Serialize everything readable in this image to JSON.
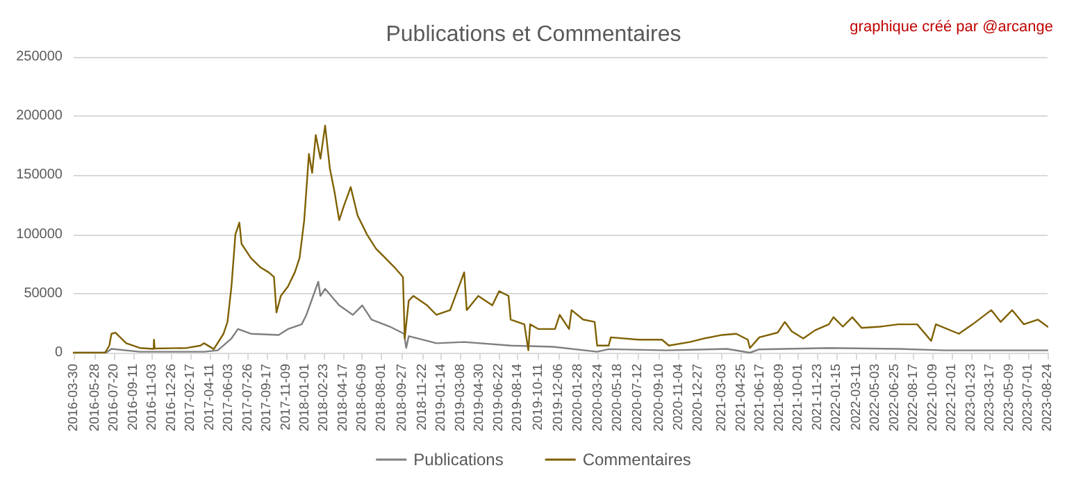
{
  "chart_data": {
    "type": "line",
    "title": "Publications et Commentaires",
    "annotations": [
      "graphique créé par @arcange"
    ],
    "xlim": [
      "2016-03-30",
      "2023-08-24"
    ],
    "xticks": [
      "2016-03-30",
      "2016-05-28",
      "2016-07-20",
      "2016-09-11",
      "2016-11-03",
      "2016-12-26",
      "2017-02-17",
      "2017-04-11",
      "2017-06-03",
      "2017-07-26",
      "2017-09-17",
      "2017-11-09",
      "2018-01-01",
      "2018-02-23",
      "2018-04-17",
      "2018-06-09",
      "2018-08-01",
      "2018-09-27",
      "2018-11-22",
      "2019-01-14",
      "2019-03-08",
      "2019-04-30",
      "2019-06-22",
      "2019-08-14",
      "2019-10-11",
      "2019-12-06",
      "2020-01-28",
      "2020-03-24",
      "2020-05-18",
      "2020-07-12",
      "2020-09-10",
      "2020-11-04",
      "2020-12-27",
      "2021-03-03",
      "2021-04-25",
      "2021-06-17",
      "2021-08-09",
      "2021-10-01",
      "2021-11-23",
      "2022-01-15",
      "2022-03-11",
      "2022-05-03",
      "2022-06-25",
      "2022-08-17",
      "2022-10-09",
      "2022-12-01",
      "2023-01-23",
      "2023-03-17",
      "2023-05-09",
      "2023-07-01",
      "2023-08-24"
    ],
    "ylim": [
      0,
      250000
    ],
    "yticks": [
      0,
      50000,
      100000,
      150000,
      200000,
      250000
    ],
    "grid": "y",
    "legend": "bottom",
    "series": [
      {
        "name": "Publications",
        "color": "#7f7f7f",
        "x": [
          "2016-03-30",
          "2016-06-28",
          "2016-07-13",
          "2016-09-29",
          "2017-03-28",
          "2017-05-04",
          "2017-06-11",
          "2017-06-29",
          "2017-08-04",
          "2017-10-20",
          "2017-11-15",
          "2017-12-23",
          "2018-01-05",
          "2018-02-07",
          "2018-02-13",
          "2018-02-26",
          "2018-04-06",
          "2018-05-14",
          "2018-06-09",
          "2018-07-05",
          "2018-08-25",
          "2018-10-03",
          "2018-10-09",
          "2018-10-16",
          "2019-01-01",
          "2019-03-19",
          "2019-07-26",
          "2019-11-21",
          "2020-03-22",
          "2020-04-23",
          "2020-10-01",
          "2021-03-17",
          "2021-05-20",
          "2021-06-15",
          "2021-12-25",
          "2022-07-06",
          "2022-11-12",
          "2023-08-24"
        ],
        "values": [
          0,
          0,
          3200,
          800,
          800,
          2000,
          12000,
          20000,
          16000,
          15000,
          20000,
          24000,
          32000,
          60000,
          48000,
          54000,
          40000,
          32000,
          40000,
          28000,
          22000,
          16000,
          4000,
          14000,
          8000,
          9000,
          6000,
          5000,
          800,
          3000,
          2000,
          3200,
          0,
          2800,
          4000,
          3200,
          2000,
          2000
        ]
      },
      {
        "name": "Commentaires",
        "color": "#7f6000",
        "x": [
          "2016-03-30",
          "2016-06-25",
          "2016-07-07",
          "2016-07-13",
          "2016-07-24",
          "2016-08-23",
          "2016-09-30",
          "2016-11-07",
          "2016-11-08",
          "2016-11-10",
          "2017-02-07",
          "2017-03-17",
          "2017-03-27",
          "2017-04-23",
          "2017-05-20",
          "2017-05-31",
          "2017-06-11",
          "2017-06-22",
          "2017-07-03",
          "2017-07-09",
          "2017-08-04",
          "2017-08-31",
          "2017-09-22",
          "2017-10-07",
          "2017-10-14",
          "2017-10-26",
          "2017-11-15",
          "2017-12-04",
          "2017-12-17",
          "2017-12-30",
          "2018-01-12",
          "2018-01-21",
          "2018-01-31",
          "2018-02-13",
          "2018-02-26",
          "2018-03-11",
          "2018-03-24",
          "2018-04-06",
          "2018-04-19",
          "2018-05-08",
          "2018-05-27",
          "2018-06-22",
          "2018-07-17",
          "2018-08-12",
          "2018-09-07",
          "2018-09-30",
          "2018-10-05",
          "2018-10-16",
          "2018-10-29",
          "2018-12-06",
          "2019-01-01",
          "2019-02-08",
          "2019-03-19",
          "2019-03-26",
          "2019-04-27",
          "2019-06-05",
          "2019-06-24",
          "2019-07-20",
          "2019-07-26",
          "2019-09-02",
          "2019-09-13",
          "2019-09-18",
          "2019-10-11",
          "2019-11-26",
          "2019-12-09",
          "2020-01-04",
          "2020-01-11",
          "2020-02-12",
          "2020-03-15",
          "2020-03-22",
          "2020-04-23",
          "2020-04-29",
          "2020-07-15",
          "2020-09-18",
          "2020-10-07",
          "2020-12-04",
          "2021-01-12",
          "2021-03-04",
          "2021-04-12",
          "2021-05-14",
          "2021-05-20",
          "2021-06-15",
          "2021-08-05",
          "2021-08-25",
          "2021-09-13",
          "2021-10-15",
          "2021-11-17",
          "2021-12-25",
          "2022-01-07",
          "2022-02-02",
          "2022-02-28",
          "2022-03-26",
          "2022-05-16",
          "2022-07-06",
          "2022-08-27",
          "2022-10-05",
          "2022-10-18",
          "2022-12-21",
          "2023-01-28",
          "2023-03-21",
          "2023-04-16",
          "2023-05-18",
          "2023-06-19",
          "2023-07-28",
          "2023-08-24"
        ],
        "values": [
          0,
          0,
          6000,
          16000,
          17000,
          8000,
          4000,
          3200,
          11000,
          3500,
          4000,
          6000,
          8000,
          3000,
          16000,
          26000,
          56000,
          100000,
          110000,
          92000,
          80000,
          72000,
          68000,
          64000,
          34000,
          48000,
          56000,
          68000,
          80000,
          112000,
          168000,
          152000,
          184000,
          164000,
          192000,
          156000,
          136000,
          112000,
          124000,
          140000,
          116000,
          100000,
          88000,
          80000,
          72000,
          64000,
          12000,
          44000,
          48000,
          40000,
          32000,
          36000,
          68000,
          36000,
          48000,
          40000,
          52000,
          48000,
          28000,
          24000,
          2000,
          24000,
          20000,
          20000,
          32000,
          20000,
          36000,
          28000,
          26000,
          6000,
          6000,
          13000,
          11000,
          11000,
          6000,
          9000,
          12000,
          15000,
          16000,
          11000,
          4000,
          13000,
          17000,
          26000,
          18000,
          12000,
          19000,
          24000,
          30000,
          22000,
          30000,
          21000,
          22000,
          24000,
          24000,
          10000,
          24000,
          16000,
          24000,
          36000,
          26000,
          36000,
          24000,
          28000,
          22000
        ]
      }
    ]
  }
}
